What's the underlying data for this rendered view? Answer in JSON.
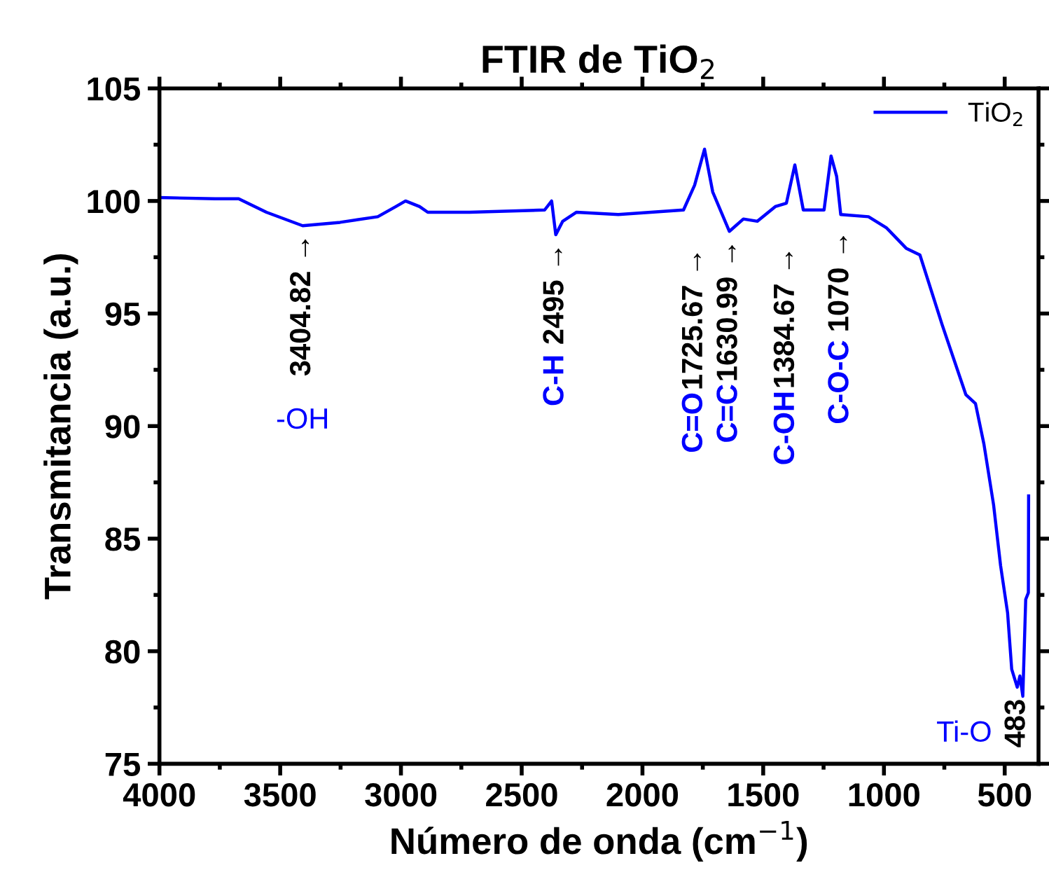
{
  "chart_data": {
    "type": "line",
    "title": "FTIR de TiO$_{2}$",
    "xlabel": "Número de onda (cm$^{−1}$)",
    "ylabel": "Transmitancia (a.u.)",
    "x": [
      4000,
      3770,
      3672,
      3557,
      3407,
      3252,
      3096,
      3021,
      2981,
      2923,
      2889,
      2716,
      2405,
      2376,
      2359,
      2330,
      2273,
      2100,
      1830,
      1784,
      1743,
      1709,
      1640,
      1582,
      1524,
      1450,
      1404,
      1369,
      1334,
      1248,
      1219,
      1196,
      1179,
      1064,
      989,
      908,
      851,
      759,
      661,
      621,
      586,
      546,
      517,
      488,
      471,
      448,
      437,
      425,
      413,
      402,
      401
    ],
    "series": [
      {
        "name": "TiO$_{2}$",
        "color": "#0000ff",
        "values": [
          100.15,
          100.1,
          100.1,
          99.5,
          98.9,
          99.05,
          99.3,
          99.75,
          100.0,
          99.75,
          99.5,
          99.5,
          99.6,
          100.0,
          98.5,
          99.1,
          99.5,
          99.4,
          99.6,
          100.7,
          102.3,
          100.4,
          98.65,
          99.2,
          99.1,
          99.75,
          99.9,
          101.6,
          99.6,
          99.6,
          102.0,
          101.1,
          99.4,
          99.3,
          98.8,
          97.9,
          97.6,
          94.5,
          91.4,
          91.0,
          89.2,
          86.5,
          83.8,
          81.7,
          79.2,
          78.4,
          78.9,
          78.0,
          82.3,
          82.6,
          86.9
        ]
      }
    ],
    "xlim": [
      4000,
      360
    ],
    "xticks": [
      4000,
      3500,
      3000,
      2500,
      2000,
      1500,
      1000,
      500
    ],
    "ylim": [
      75,
      105
    ],
    "yticks": [
      75,
      80,
      85,
      90,
      95,
      100,
      105
    ],
    "annotations": [
      {
        "text": "3404.82 →",
        "x": 3407,
        "y": 98.9
      },
      {
        "text": "2495 →",
        "x": 2359,
        "y": 98.5
      },
      {
        "text": "1725.67 →",
        "x": 1784,
        "y": 100.7
      },
      {
        "text": "1630.99 →",
        "x": 1640,
        "y": 98.65
      },
      {
        "text": "1384.67 →",
        "x": 1404,
        "y": 99.9
      },
      {
        "text": "1070 →",
        "x": 1179,
        "y": 99.4
      },
      {
        "text": "483",
        "x": 448,
        "y": 78.4
      },
      "-OH",
      "C-H",
      "C=O",
      "C=C",
      "C-OH",
      "C-O-C",
      "Ti-O"
    ],
    "grid": false,
    "legend": "top right",
    "marker": "none",
    "line_style": "solid"
  }
}
